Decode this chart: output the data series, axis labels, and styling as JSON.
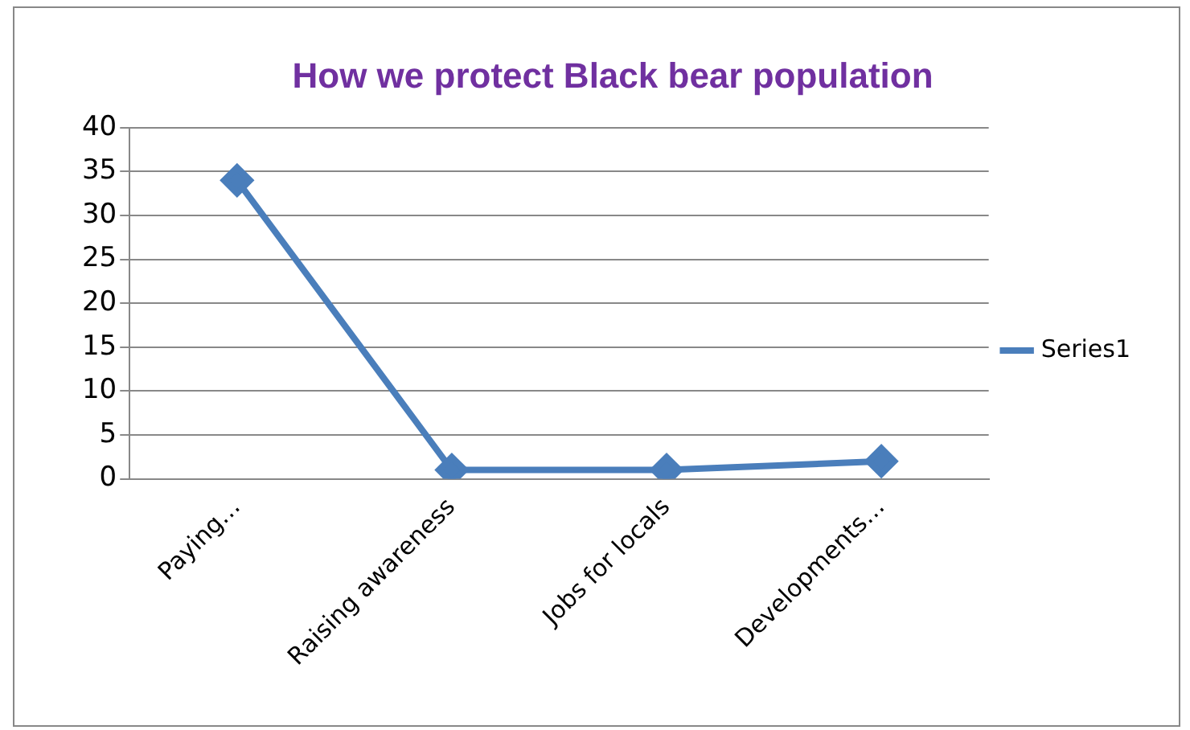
{
  "chart_data": {
    "type": "line",
    "title": "How we protect Black bear population",
    "categories": [
      "Paying…",
      "Raising awareness",
      "Jobs for locals",
      "Developments…"
    ],
    "series": [
      {
        "name": "Series1",
        "color": "#4a7ebb",
        "values": [
          34,
          1,
          1,
          2
        ]
      }
    ],
    "ylim": [
      0,
      40
    ],
    "yticks": [
      0,
      5,
      10,
      15,
      20,
      25,
      30,
      35,
      40
    ],
    "grid": "y",
    "legend": "right",
    "marker": "diamond"
  }
}
